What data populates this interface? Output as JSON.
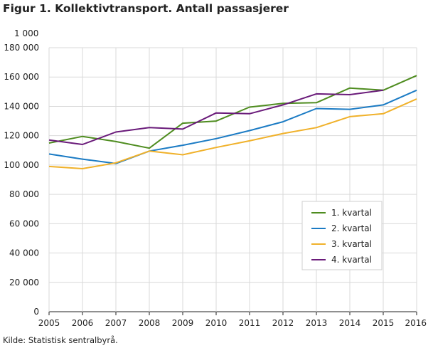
{
  "title": "Figur 1. Kollektivtransport. Antall passasjerer",
  "source": "Kilde: Statistisk sentralbyrå.",
  "chart_data": {
    "type": "line",
    "unit": "1 000",
    "x": [
      "2005",
      "2006",
      "2007",
      "2008",
      "2009",
      "2010",
      "2011",
      "2012",
      "2013",
      "2014",
      "2015",
      "2016"
    ],
    "ylim": [
      0,
      180000
    ],
    "yticks": [
      0,
      20000,
      40000,
      60000,
      80000,
      100000,
      120000,
      140000,
      160000,
      180000
    ],
    "ytick_labels": [
      "0",
      "20 000",
      "40 000",
      "60 000",
      "80 000",
      "100 000",
      "120 000",
      "140 000",
      "160 000",
      "180 000"
    ],
    "grid": true,
    "legend_position": "bottom-right",
    "series": [
      {
        "name": "1. kvartal",
        "color": "#4e8c1f",
        "values": [
          115000,
          119500,
          116000,
          111500,
          128500,
          130000,
          139500,
          142000,
          142500,
          152500,
          151000,
          161000
        ]
      },
      {
        "name": "2. kvartal",
        "color": "#1b7bc4",
        "values": [
          107500,
          104000,
          101000,
          109500,
          113500,
          118000,
          123500,
          129500,
          138500,
          138000,
          141000,
          151000
        ]
      },
      {
        "name": "3. kvartal",
        "color": "#f0b12a",
        "values": [
          99000,
          97500,
          101500,
          109500,
          107000,
          112000,
          116500,
          121500,
          125500,
          133000,
          135000,
          145000
        ]
      },
      {
        "name": "4. kvartal",
        "color": "#6a1b7a",
        "values": [
          117000,
          114000,
          122500,
          125500,
          124500,
          135500,
          135000,
          141000,
          148500,
          148000,
          151000,
          null
        ]
      }
    ]
  }
}
